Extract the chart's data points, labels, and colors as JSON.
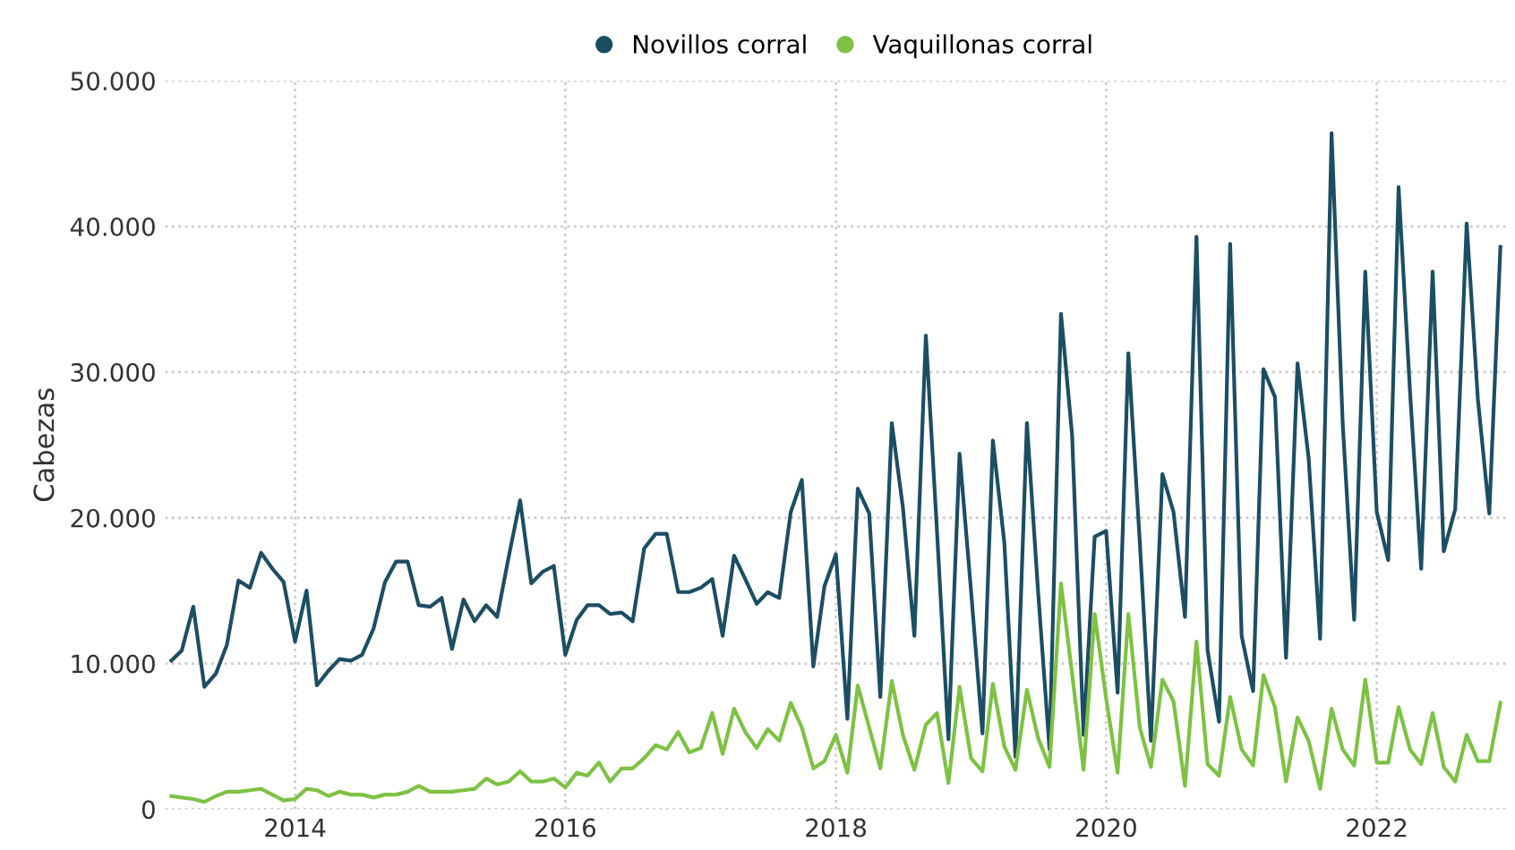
{
  "chart_data": {
    "type": "line",
    "ylabel": "Cabezas",
    "x": [
      "2013-02",
      "2013-03",
      "2013-04",
      "2013-05",
      "2013-06",
      "2013-07",
      "2013-08",
      "2013-09",
      "2013-10",
      "2013-11",
      "2013-12",
      "2014-01",
      "2014-02",
      "2014-03",
      "2014-04",
      "2014-05",
      "2014-06",
      "2014-07",
      "2014-08",
      "2014-09",
      "2014-10",
      "2014-11",
      "2014-12",
      "2015-01",
      "2015-02",
      "2015-03",
      "2015-04",
      "2015-05",
      "2015-06",
      "2015-07",
      "2015-08",
      "2015-09",
      "2015-10",
      "2015-11",
      "2015-12",
      "2016-01",
      "2016-02",
      "2016-03",
      "2016-04",
      "2016-05",
      "2016-06",
      "2016-07",
      "2016-08",
      "2016-09",
      "2016-10",
      "2016-11",
      "2016-12",
      "2017-01",
      "2017-02",
      "2017-03",
      "2017-04",
      "2017-05",
      "2017-06",
      "2017-07",
      "2017-08",
      "2017-09",
      "2017-10",
      "2017-11",
      "2017-12",
      "2018-01",
      "2018-02",
      "2018-03",
      "2018-04",
      "2018-05",
      "2018-06",
      "2018-07",
      "2018-08",
      "2018-09",
      "2018-10",
      "2018-11",
      "2018-12",
      "2019-01",
      "2019-02",
      "2019-03",
      "2019-04",
      "2019-05",
      "2019-06",
      "2019-07",
      "2019-08",
      "2019-09",
      "2019-10",
      "2019-11",
      "2019-12",
      "2020-01",
      "2020-02",
      "2020-03",
      "2020-04",
      "2020-05",
      "2020-06",
      "2020-07",
      "2020-08",
      "2020-09",
      "2020-10",
      "2020-11",
      "2020-12",
      "2021-01",
      "2021-02",
      "2021-03",
      "2021-04",
      "2021-05",
      "2021-06",
      "2021-07",
      "2021-08",
      "2021-09",
      "2021-10",
      "2021-11",
      "2021-12",
      "2022-01",
      "2022-02",
      "2022-03",
      "2022-04",
      "2022-05",
      "2022-06",
      "2022-07",
      "2022-08",
      "2022-09",
      "2022-10",
      "2022-11",
      "2022-12"
    ],
    "series": [
      {
        "name": "Novillos corral",
        "color": "#1c4e63",
        "values": [
          10200,
          10900,
          13900,
          8400,
          9300,
          11300,
          15700,
          15200,
          17600,
          16500,
          15600,
          11500,
          15000,
          8500,
          9500,
          10300,
          10200,
          10600,
          12400,
          15600,
          17000,
          17000,
          14000,
          13900,
          14500,
          11000,
          14400,
          12900,
          14000,
          13200,
          17300,
          21200,
          15500,
          16300,
          16700,
          10600,
          13000,
          14000,
          14000,
          13400,
          13500,
          12900,
          17900,
          18900,
          18900,
          14900,
          14900,
          15200,
          15800,
          11900,
          17400,
          15800,
          14100,
          14900,
          14500,
          20400,
          22600,
          9800,
          15300,
          17500,
          6200,
          22000,
          20300,
          7700,
          26500,
          20700,
          11900,
          32500,
          19100,
          4800,
          24400,
          15000,
          5200,
          25300,
          18300,
          3600,
          26500,
          15000,
          4100,
          34000,
          25700,
          5100,
          18700,
          19100,
          8000,
          31300,
          18300,
          4700,
          23000,
          20400,
          13200,
          39300,
          10900,
          6000,
          38800,
          11900,
          8100,
          30200,
          28300,
          10400,
          30600,
          24100,
          11700,
          46400,
          26500,
          13000,
          36900,
          20400,
          17100,
          42700,
          28600,
          16500,
          36900,
          17700,
          20600,
          40200,
          28200,
          20300,
          38600
        ]
      },
      {
        "name": "Vaquillonas corral",
        "color": "#7dc243",
        "values": [
          900,
          800,
          700,
          500,
          900,
          1200,
          1200,
          1300,
          1400,
          1000,
          600,
          700,
          1400,
          1300,
          900,
          1200,
          1000,
          1000,
          800,
          1000,
          1000,
          1200,
          1600,
          1200,
          1200,
          1200,
          1300,
          1400,
          2100,
          1700,
          1900,
          2600,
          1900,
          1900,
          2100,
          1500,
          2500,
          2300,
          3200,
          1900,
          2800,
          2800,
          3500,
          4400,
          4100,
          5300,
          3900,
          4200,
          6600,
          3800,
          6900,
          5300,
          4200,
          5500,
          4700,
          7300,
          5600,
          2800,
          3300,
          5100,
          2500,
          8500,
          5600,
          2800,
          8800,
          5100,
          2700,
          5800,
          6600,
          1800,
          8400,
          3500,
          2600,
          8600,
          4300,
          2700,
          8200,
          4900,
          2900,
          15500,
          9300,
          2700,
          13400,
          7600,
          2500,
          13400,
          5600,
          2900,
          8900,
          7400,
          1600,
          11500,
          3100,
          2300,
          7700,
          4100,
          3000,
          9200,
          7000,
          1900,
          6300,
          4700,
          1400,
          6900,
          4100,
          3000,
          8900,
          3200,
          3200,
          7000,
          4100,
          3100,
          6600,
          2900,
          1900,
          5100,
          3300,
          3300,
          7300
        ]
      }
    ],
    "xlim": [
      "2013-01-15",
      "2022-12-20"
    ],
    "xticks": [
      {
        "value": "2014",
        "label": "2014"
      },
      {
        "value": "2016",
        "label": "2016"
      },
      {
        "value": "2018",
        "label": "2018"
      },
      {
        "value": "2020",
        "label": "2020"
      },
      {
        "value": "2022",
        "label": "2022"
      }
    ],
    "ylim": [
      0,
      50000
    ],
    "yticks": [
      0,
      {
        "value": 10000,
        "label": "10.000"
      },
      {
        "value": 20000,
        "label": "20.000"
      },
      {
        "value": 30000,
        "label": "30.000"
      },
      {
        "value": 40000,
        "label": "40.000"
      },
      {
        "value": 50000,
        "label": "50.000"
      }
    ],
    "grid": true,
    "legend": "top",
    "line_style": "solid"
  }
}
